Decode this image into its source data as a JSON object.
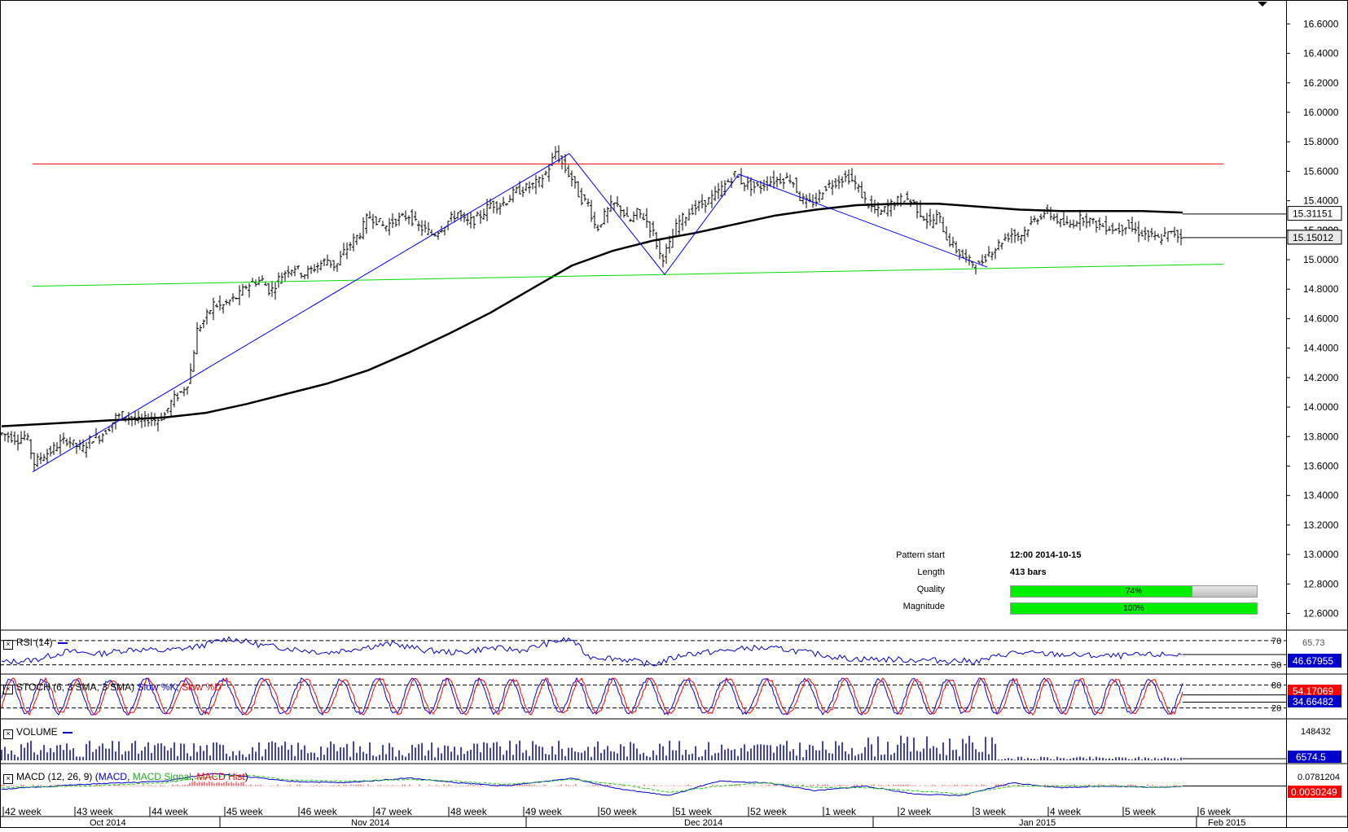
{
  "chart_data": [
    {
      "type": "line",
      "panel": "price",
      "y_ticks": [
        "16.6000",
        "16.4000",
        "16.2000",
        "16.0000",
        "15.8000",
        "15.6000",
        "15.4000",
        "15.2000",
        "15.0000",
        "14.8000",
        "14.6000",
        "14.4000",
        "14.2000",
        "14.0000",
        "13.8000",
        "13.6000",
        "13.4000",
        "13.2000",
        "13.0000",
        "12.8000",
        "12.6000"
      ],
      "ylim": [
        12.52,
        16.74
      ],
      "series": [
        {
          "role": "ohlc",
          "color": "#000000",
          "x": [
            0,
            10,
            20,
            30,
            40,
            50,
            60,
            70,
            80,
            90,
            100,
            110,
            120,
            130,
            140,
            150,
            160,
            170,
            180,
            190,
            200,
            210,
            220,
            230,
            240,
            250,
            260,
            270,
            280,
            290,
            300,
            310,
            320,
            330,
            340,
            350,
            360,
            370,
            380,
            390,
            400,
            410,
            420,
            430,
            440,
            450,
            460,
            470,
            480,
            490,
            500,
            510,
            520,
            530,
            540,
            550,
            560,
            570,
            580,
            590,
            600,
            610,
            620,
            630,
            640,
            650,
            660,
            670,
            680,
            690,
            700,
            710,
            720,
            730,
            740,
            750,
            760,
            770,
            780,
            790,
            800,
            810,
            820,
            830,
            840,
            850,
            860,
            870,
            880,
            890,
            900,
            910,
            920,
            930,
            940,
            950,
            960,
            970,
            980,
            990,
            1000,
            1010,
            1020,
            1030,
            1040,
            1050,
            1060,
            1070,
            1080,
            1090,
            1100,
            1110,
            1120,
            1130,
            1140,
            1150,
            1160,
            1170,
            1180,
            1190,
            1200,
            1210,
            1220,
            1230,
            1240,
            1250,
            1260,
            1270,
            1280,
            1290,
            1300,
            1310,
            1320,
            1330,
            1340,
            1350,
            1360,
            1370,
            1380,
            1390,
            1400,
            1410,
            1420,
            1430,
            1440,
            1450
          ],
          "close": [
            13.82,
            13.8,
            13.78,
            13.81,
            13.62,
            13.67,
            13.7,
            13.75,
            13.78,
            13.74,
            13.72,
            13.79,
            13.8,
            13.85,
            13.93,
            13.95,
            13.92,
            13.9,
            13.92,
            13.91,
            13.95,
            14.05,
            14.1,
            14.18,
            14.52,
            14.6,
            14.7,
            14.68,
            14.72,
            14.75,
            14.82,
            14.85,
            14.86,
            14.78,
            14.87,
            14.93,
            14.95,
            14.9,
            14.93,
            14.97,
            15.0,
            14.95,
            15.05,
            15.12,
            15.18,
            15.3,
            15.27,
            15.22,
            15.26,
            15.28,
            15.3,
            15.23,
            15.2,
            15.17,
            15.22,
            15.27,
            15.32,
            15.25,
            15.27,
            15.31,
            15.38,
            15.37,
            15.4,
            15.46,
            15.48,
            15.5,
            15.53,
            15.6,
            15.73,
            15.63,
            15.55,
            15.42,
            15.38,
            15.2,
            15.3,
            15.38,
            15.35,
            15.25,
            15.32,
            15.28,
            15.18,
            15.0,
            15.1,
            15.25,
            15.3,
            15.35,
            15.38,
            15.41,
            15.46,
            15.52,
            15.58,
            15.52,
            15.5,
            15.49,
            15.53,
            15.54,
            15.55,
            15.55,
            15.42,
            15.38,
            15.4,
            15.49,
            15.52,
            15.55,
            15.56,
            15.5,
            15.4,
            15.34,
            15.32,
            15.37,
            15.4,
            15.42,
            15.38,
            15.3,
            15.25,
            15.3,
            15.15,
            15.08,
            15.02,
            14.98,
            14.96,
            15.04,
            15.08,
            15.14,
            15.18,
            15.16,
            15.22,
            15.28,
            15.32,
            15.3,
            15.25,
            15.23,
            15.27,
            15.29,
            15.25,
            15.23,
            15.22,
            15.2,
            15.24,
            15.2,
            15.18,
            15.16,
            15.14,
            15.17,
            15.18,
            15.15
          ]
        },
        {
          "role": "moving-average",
          "color": "#000000",
          "x": [
            0,
            100,
            200,
            250,
            300,
            350,
            400,
            450,
            500,
            550,
            600,
            650,
            700,
            750,
            800,
            850,
            900,
            950,
            1000,
            1050,
            1100,
            1150,
            1200,
            1250,
            1300,
            1350,
            1400,
            1450
          ],
          "values": [
            13.87,
            13.9,
            13.93,
            13.96,
            14.02,
            14.09,
            14.16,
            14.25,
            14.37,
            14.5,
            14.64,
            14.8,
            14.96,
            15.06,
            15.13,
            15.18,
            15.24,
            15.3,
            15.34,
            15.37,
            15.38,
            15.38,
            15.36,
            15.34,
            15.33,
            15.33,
            15.33,
            15.32
          ]
        },
        {
          "role": "resistance",
          "color": "#ff0000",
          "x": [
            38,
            1500
          ],
          "values": [
            15.65,
            15.65
          ]
        },
        {
          "role": "support",
          "color": "#00dd00",
          "x": [
            38,
            1500
          ],
          "values": [
            14.82,
            14.97
          ]
        },
        {
          "role": "pattern",
          "color": "#0000ff",
          "x": [
            38,
            697,
            814,
            905,
            1210
          ],
          "values": [
            13.56,
            15.72,
            14.9,
            15.58,
            14.95
          ]
        }
      ],
      "price_tags": [
        {
          "value": "15.31151",
          "bg": "#ffffff",
          "fg": "#000000"
        },
        {
          "value": "15.15012",
          "bg": "#e8e8e8",
          "fg": "#000000"
        }
      ],
      "hidden_tick": "15.2000"
    },
    {
      "type": "line",
      "panel": "rsi",
      "label": "RSI (14)",
      "levels": [
        "70",
        "30"
      ],
      "level_values": [
        70,
        30
      ],
      "ylim": [
        20,
        82
      ],
      "series": [
        {
          "name": "RSI",
          "color": "#0000cc",
          "x": [
            0,
            40,
            80,
            120,
            160,
            200,
            240,
            280,
            320,
            360,
            400,
            440,
            480,
            520,
            560,
            600,
            640,
            680,
            700,
            720,
            760,
            800,
            840,
            880,
            920,
            960,
            1000,
            1040,
            1080,
            1120,
            1160,
            1200,
            1240,
            1280,
            1320,
            1360,
            1400,
            1450
          ],
          "values": [
            34,
            38,
            52,
            48,
            56,
            53,
            60,
            74,
            62,
            56,
            50,
            58,
            65,
            54,
            50,
            58,
            54,
            69,
            72,
            44,
            40,
            30,
            48,
            52,
            58,
            56,
            48,
            40,
            39,
            38,
            37,
            36,
            50,
            48,
            46,
            44,
            46,
            47
          ]
        }
      ],
      "tag": {
        "value": "46.67955",
        "bg": "#0000cc",
        "fg": "#ffffff"
      },
      "extra_label": "65.73"
    },
    {
      "type": "line",
      "panel": "stochastic",
      "label": "STOCH (6, 3 SMA, 3 SMA)",
      "legend": [
        "Slow %K",
        "Slow %D"
      ],
      "levels": [
        "80",
        "20"
      ],
      "level_values": [
        80,
        20
      ],
      "ylim": [
        0,
        100
      ],
      "series": [
        {
          "name": "Slow %K",
          "color": "#0000ff",
          "cycle_period": 44,
          "phase": 0
        },
        {
          "name": "Slow %D",
          "color": "#ff0000",
          "cycle_period": 44,
          "phase": 4
        }
      ],
      "tags": [
        {
          "value": "54.17069",
          "bg": "#ff0000",
          "fg": "#ffffff"
        },
        {
          "value": "34.66482",
          "bg": "#0000cc",
          "fg": "#ffffff"
        }
      ]
    },
    {
      "type": "bar",
      "panel": "volume",
      "label": "VOLUME",
      "y_tick": "148432",
      "volume_max": 160000,
      "tag": {
        "value": "6574.5",
        "bg": "#0000cc",
        "fg": "#ffffff"
      }
    },
    {
      "type": "line",
      "panel": "macd",
      "label": "MACD (12, 26, 9)",
      "legend": [
        "MACD",
        "MACD Signal",
        "MACD Hist"
      ],
      "y_tick": "0.0781204",
      "ylim": [
        -0.12,
        0.12
      ],
      "series": [
        {
          "name": "MACD",
          "color": "#0000cc",
          "x": [
            0,
            100,
            200,
            260,
            300,
            350,
            420,
            500,
            560,
            620,
            700,
            760,
            820,
            880,
            940,
            1000,
            1060,
            1120,
            1180,
            1240,
            1300,
            1360,
            1420,
            1450
          ],
          "values": [
            -0.02,
            0.01,
            0.03,
            0.08,
            0.06,
            0.03,
            0.02,
            0.05,
            0.02,
            0.0,
            0.05,
            -0.02,
            -0.06,
            0.03,
            0.02,
            -0.03,
            0.0,
            -0.05,
            -0.06,
            0.02,
            -0.01,
            0.0,
            -0.01,
            0.0
          ]
        },
        {
          "name": "MACD Signal",
          "color": "#22cc22",
          "x": [
            0,
            100,
            200,
            260,
            300,
            350,
            420,
            500,
            560,
            620,
            700,
            760,
            820,
            880,
            940,
            1000,
            1060,
            1120,
            1180,
            1240,
            1300,
            1360,
            1420,
            1450
          ],
          "values": [
            -0.01,
            0.0,
            0.02,
            0.06,
            0.07,
            0.04,
            0.03,
            0.04,
            0.03,
            0.01,
            0.04,
            0.01,
            -0.04,
            0.0,
            0.02,
            -0.01,
            -0.01,
            -0.03,
            -0.05,
            0.0,
            0.0,
            0.0,
            -0.01,
            0.0
          ]
        },
        {
          "name": "MACD Hist",
          "color": "#ff0000"
        }
      ],
      "tag": {
        "value": "0.0030249",
        "bg": "#ff0000",
        "fg": "#ffffff"
      }
    }
  ],
  "x_axis": {
    "weeks": [
      "42 week",
      "43 week",
      "44 week",
      "45 week",
      "46 week",
      "47 week",
      "48 week",
      "49 week",
      "50 week",
      "51 week",
      "52 week",
      "1 week",
      "2 week",
      "3 week",
      "4 week",
      "5 week",
      "6 week"
    ],
    "months": [
      "Oct 2014",
      "Nov 2014",
      "Dec 2014",
      "Jan 2015",
      "Feb 2015"
    ]
  },
  "pattern_info": {
    "pattern_start_label": "Pattern start",
    "pattern_start_value": "12:00 2014-10-15",
    "length_label": "Length",
    "length_value": "413 bars",
    "quality_label": "Quality",
    "quality_value": "74%",
    "quality_fraction": 0.74,
    "magnitude_label": "Magnitude",
    "magnitude_value": "100%",
    "magnitude_fraction": 1.0
  },
  "colors": {
    "accent_blue": "#0000cc",
    "support": "#00dd00",
    "resistance": "#ff0000",
    "quality_bar": "#00ee00"
  }
}
